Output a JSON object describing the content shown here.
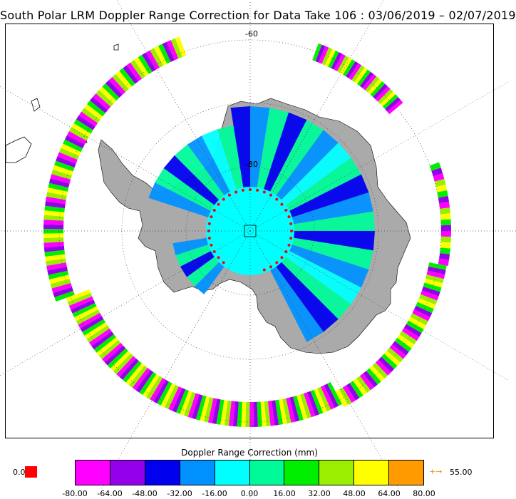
{
  "title": "South Polar LRM Doppler Range Correction for Data Take 106 : 03/06/2019 – 02/07/2019",
  "map": {
    "projection": "south polar stereographic",
    "latitude_labels": [
      "-60",
      "-80"
    ],
    "colors": {
      "land": "#aaaaaa",
      "grid": "#444444"
    }
  },
  "colorbar": {
    "title": "Doppler Range Correction (mm)",
    "ticks": [
      "-80.00",
      "-64.00",
      "-48.00",
      "-32.00",
      "-16.00",
      "0.00",
      "16.00",
      "32.00",
      "48.00",
      "64.00",
      "80.00"
    ],
    "colors": [
      "#ff00ff",
      "#9400ea",
      "#0000ee",
      "#0091ff",
      "#00ffff",
      "#00fa9a",
      "#00ee00",
      "#9aee00",
      "#ffff00",
      "#ff9a00"
    ],
    "under_value": "0.0",
    "under_color": "#ff0000",
    "over_value": "55.00",
    "over_arrow": "+→",
    "over_color": "#e8961e"
  }
}
